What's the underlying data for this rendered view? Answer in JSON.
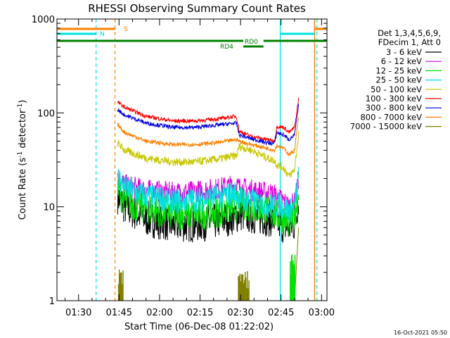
{
  "chart_data": {
    "type": "line",
    "title": "RHESSI Observing Summary Count Rates",
    "xlabel": "Start Time (06-Dec-08 01:22:02)",
    "ylabel_main": "Count Rate (s",
    "ylabel_sup1": "-1",
    "ylabel_mid": " detector",
    "ylabel_sup2": "-1",
    "ylabel_end": ")",
    "yscale": "log",
    "ylim": [
      1,
      1000
    ],
    "xlim_minutes": [
      82,
      182
    ],
    "yticks": [
      {
        "v": 1,
        "label": "1"
      },
      {
        "v": 10,
        "label": "10"
      },
      {
        "v": 100,
        "label": "100"
      },
      {
        "v": 1000,
        "label": "1000"
      }
    ],
    "xticks": [
      {
        "t": 90,
        "label": "01:30"
      },
      {
        "t": 105,
        "label": "01:45"
      },
      {
        "t": 120,
        "label": "02:00"
      },
      {
        "t": 135,
        "label": "02:15"
      },
      {
        "t": 150,
        "label": "02:30"
      },
      {
        "t": 165,
        "label": "02:45"
      },
      {
        "t": 180,
        "label": "03:00"
      }
    ],
    "legend_header": [
      "Det 1,3,4,5,6,9,",
      "FDecim 1, Att 0"
    ],
    "timestamp": "16-Oct-2021 05:50",
    "series": [
      {
        "name": "3 - 6 keV",
        "color": "#000000",
        "t": [
          104.5,
          107,
          115,
          125,
          133,
          141,
          148.5,
          149.5,
          154,
          160,
          162.5,
          163.5,
          166,
          168,
          170,
          171.5
        ],
        "y": [
          13,
          10,
          7.5,
          6.5,
          6.5,
          7,
          8,
          8.5,
          8,
          7.5,
          7.3,
          6.8,
          6.3,
          6,
          6.5,
          12
        ]
      },
      {
        "name": "6 - 12 keV",
        "color": "#e000e0",
        "t": [
          104.5,
          107,
          115,
          125,
          133,
          141,
          148.5,
          149.5,
          154,
          160,
          162.5,
          163.5,
          166,
          168,
          170,
          171.5
        ],
        "y": [
          21,
          17,
          15,
          14,
          14.5,
          15.5,
          17,
          16,
          15,
          14,
          13.5,
          12.5,
          11.5,
          10,
          11,
          20
        ]
      },
      {
        "name": "12 - 25 keV",
        "color": "#00e000",
        "t": [
          104.5,
          107,
          115,
          125,
          133,
          141,
          148.5,
          149.5,
          154,
          160,
          162.5,
          163.5,
          166,
          168,
          170,
          171.5
        ],
        "y": [
          15,
          11.5,
          9.5,
          8.5,
          8.3,
          8.8,
          10,
          11,
          10,
          9,
          8.5,
          8,
          7.5,
          7,
          8,
          14
        ]
      },
      {
        "name": "25 - 50 keV",
        "color": "#00e0e0",
        "t": [
          104.5,
          107,
          115,
          125,
          133,
          141,
          148.5,
          149.5,
          154,
          160,
          162.5,
          163.5,
          166,
          168,
          170,
          171.5
        ],
        "y": [
          21,
          16,
          13,
          11.5,
          11.8,
          12.8,
          14,
          12.5,
          11.5,
          10.5,
          10,
          10.5,
          10,
          9,
          10,
          20
        ]
      },
      {
        "name": "50 - 100 keV",
        "color": "#c8c800",
        "t": [
          104.5,
          107,
          115,
          125,
          133,
          141,
          148.5,
          149.5,
          154,
          160,
          162.5,
          163.5,
          166,
          168,
          170,
          171.5
        ],
        "y": [
          48,
          40,
          33,
          30,
          30,
          32,
          35,
          44,
          40,
          33,
          31,
          28,
          26,
          21,
          25,
          60
        ]
      },
      {
        "name": "100 - 300 keV",
        "color": "#ff0000",
        "t": [
          104.5,
          107,
          115,
          125,
          133,
          141,
          148.5,
          149.5,
          154,
          160,
          162.5,
          163.5,
          166,
          168,
          170,
          171.5
        ],
        "y": [
          130,
          115,
          92,
          82,
          82,
          86,
          92,
          64,
          56,
          52,
          50,
          72,
          70,
          62,
          70,
          140
        ]
      },
      {
        "name": "300 - 800 keV",
        "color": "#0000e0",
        "t": [
          104.5,
          107,
          115,
          125,
          133,
          141,
          148.5,
          149.5,
          154,
          160,
          162.5,
          163.5,
          166,
          168,
          170,
          171.5
        ],
        "y": [
          108,
          95,
          78,
          70,
          70,
          74,
          78,
          58,
          53,
          48,
          47,
          62,
          58,
          52,
          58,
          120
        ]
      },
      {
        "name": "800 - 7000 keV",
        "color": "#ff8000",
        "t": [
          104.5,
          107,
          115,
          125,
          133,
          141,
          148.5,
          149.5,
          154,
          160,
          162.5,
          163.5,
          166,
          168,
          170,
          171.5
        ],
        "y": [
          75,
          62,
          50,
          46,
          46,
          48,
          52,
          50,
          46,
          42,
          40,
          45,
          42,
          36,
          40,
          90
        ]
      },
      {
        "name": "7000 - 15000 keV",
        "color": "#808000",
        "t": [
          104.5,
          107,
          115,
          125,
          133,
          141,
          148.5,
          149.5,
          154,
          160,
          162.5,
          163.5,
          166,
          168,
          170,
          171.5
        ],
        "y": [
          1,
          1,
          1,
          1,
          1,
          1,
          1,
          1,
          1,
          1,
          1,
          1,
          1,
          1,
          1,
          6
        ]
      }
    ],
    "annotations": {
      "S": {
        "label": "S",
        "color": "#ff8000"
      },
      "N": {
        "label": "N",
        "color": "#00e0e0"
      },
      "RD0": {
        "label": "RD0",
        "color": "#008000"
      },
      "RD4": {
        "label": "RD4",
        "color": "#008000"
      }
    }
  }
}
